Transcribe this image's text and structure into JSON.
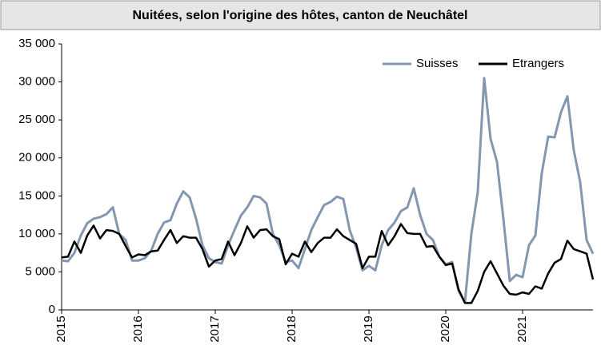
{
  "chart_data": {
    "type": "line",
    "title": "Nuitées, selon l'origine des hôtes, canton de Neuchâtel",
    "categories": [
      "2015",
      null,
      null,
      null,
      null,
      null,
      null,
      null,
      null,
      null,
      null,
      null,
      "2016",
      null,
      null,
      null,
      null,
      null,
      null,
      null,
      null,
      null,
      null,
      null,
      "2017",
      null,
      null,
      null,
      null,
      null,
      null,
      null,
      null,
      null,
      null,
      null,
      "2018",
      null,
      null,
      null,
      null,
      null,
      null,
      null,
      null,
      null,
      null,
      null,
      "2019",
      null,
      null,
      null,
      null,
      null,
      null,
      null,
      null,
      null,
      null,
      null,
      "2020",
      null,
      null,
      null,
      null,
      null,
      null,
      null,
      null,
      null,
      null,
      null,
      "2021",
      null,
      null,
      null,
      null,
      null,
      null,
      null,
      null,
      null,
      null,
      null
    ],
    "series": [
      {
        "name": "Suisses",
        "color": "#8497b0",
        "values": [
          6500,
          6400,
          7500,
          9800,
          11400,
          12000,
          12200,
          12600,
          13500,
          10000,
          9200,
          6500,
          6500,
          6800,
          7800,
          10000,
          11500,
          11800,
          14000,
          15600,
          14800,
          12000,
          8500,
          6800,
          6300,
          6100,
          8500,
          10500,
          12400,
          13500,
          15000,
          14800,
          14000,
          10000,
          8500,
          6300,
          6500,
          5500,
          8000,
          10500,
          12200,
          13800,
          14200,
          14900,
          14600,
          10500,
          8200,
          5200,
          5800,
          5200,
          8500,
          10500,
          11500,
          13000,
          13500,
          16000,
          12500,
          10000,
          9200,
          7000,
          6000,
          6300,
          2500,
          1000,
          10000,
          15500,
          30500,
          22500,
          19500,
          12000,
          3800,
          4600,
          4300,
          8500,
          9800,
          18000,
          22800,
          22700,
          26000,
          28100,
          21000,
          16800,
          9200,
          7400
        ]
      },
      {
        "name": "Etrangers",
        "color": "#000000",
        "values": [
          6900,
          7000,
          9000,
          7500,
          9800,
          11100,
          9400,
          10500,
          10400,
          10000,
          8400,
          6900,
          7300,
          7200,
          7700,
          7800,
          9200,
          10500,
          8800,
          9700,
          9500,
          9500,
          8000,
          5700,
          6500,
          6700,
          9000,
          7200,
          8800,
          11000,
          9500,
          10500,
          10600,
          9700,
          9300,
          6000,
          7400,
          7000,
          9000,
          7600,
          8800,
          9500,
          9500,
          10600,
          9700,
          9200,
          8700,
          5500,
          7000,
          7000,
          10400,
          8500,
          9700,
          11300,
          10100,
          10000,
          10000,
          8300,
          8400,
          7000,
          5900,
          6100,
          2700,
          900,
          900,
          2500,
          5000,
          6400,
          4800,
          3200,
          2100,
          2000,
          2300,
          2100,
          3100,
          2800,
          4800,
          6200,
          6700,
          9100,
          8000,
          7700,
          7400,
          4000
        ]
      }
    ],
    "ylim": [
      0,
      35000
    ],
    "yticks": [
      0,
      {
        "value": 5000,
        "label": "5 000"
      },
      {
        "value": 10000,
        "label": "10 000"
      },
      {
        "value": 15000,
        "label": "15 000"
      },
      {
        "value": 20000,
        "label": "20 000"
      },
      {
        "value": 25000,
        "label": "25 000"
      },
      {
        "value": 30000,
        "label": "30 000"
      },
      {
        "value": 35000,
        "label": "35 000"
      }
    ],
    "legend": "top-right"
  }
}
